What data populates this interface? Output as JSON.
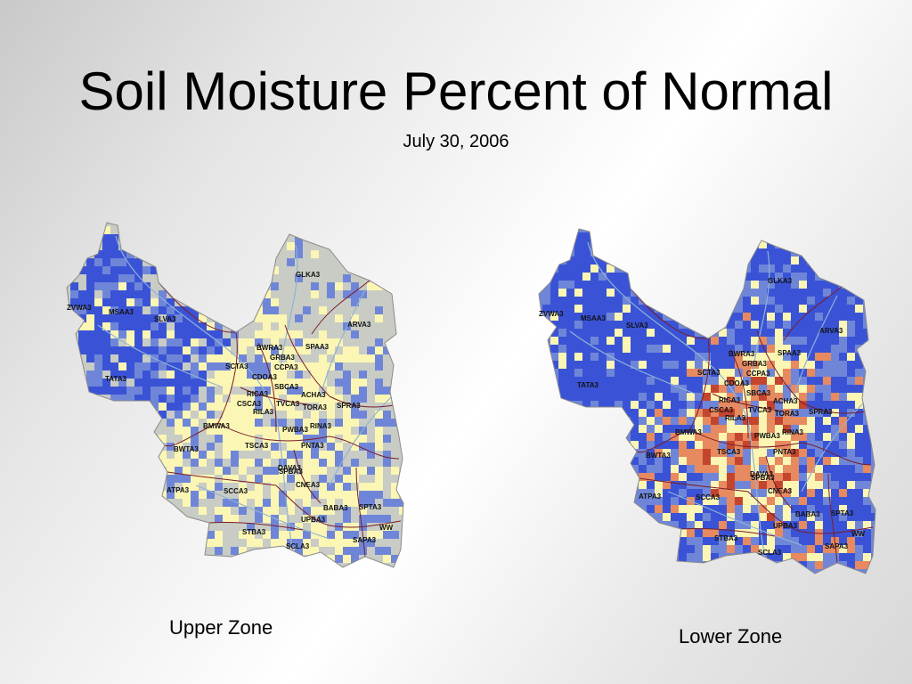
{
  "title": "Soil Moisture Percent of Normal",
  "date": "July 30, 2006",
  "colors": {
    "wet": "#3a53d6",
    "wet_light": "#6f86d8",
    "normal": "#c8ccc4",
    "dry": "#fbf6b4",
    "very_dry": "#e78a60",
    "extreme_dry": "#c4452e",
    "boundary": "#7a1c2a",
    "river": "#8fb3d6"
  },
  "basin_labels": [
    "GLKA3",
    "ARVA3",
    "ZVWA3",
    "MSAA3",
    "SLVA3",
    "TATA3",
    "SCTA3",
    "BWRA3",
    "SPAA3",
    "GRBA3",
    "CCPA3",
    "CDOA3",
    "SBCA3",
    "RICA3",
    "CSCA3",
    "RILA3",
    "ACHA3",
    "TVCA3",
    "TORA3",
    "SPRA3",
    "BMWA3",
    "PWBA3",
    "RINA3",
    "BWTA3",
    "TSCA3",
    "PNTA3",
    "DAVA3",
    "CNEA3",
    "SPBA3",
    "ATPA3",
    "SCCA3",
    "BABA3",
    "SPTA3",
    "UPBA3",
    "STBA3",
    "SCLA3",
    "SAPA3",
    "WW"
  ],
  "maps": [
    {
      "zone": "Upper Zone"
    },
    {
      "zone": "Lower Zone"
    }
  ]
}
